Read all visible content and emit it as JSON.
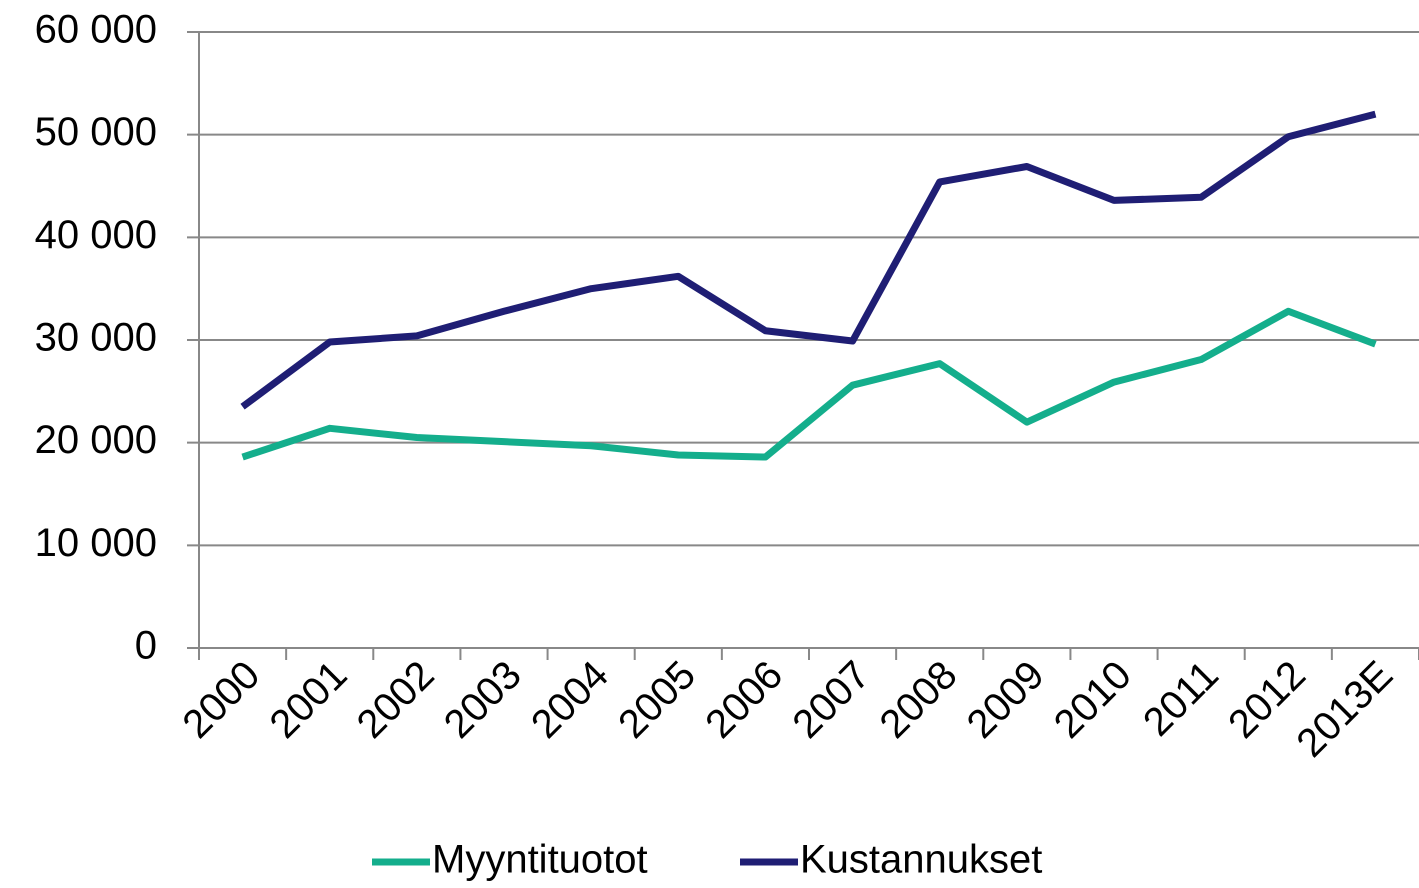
{
  "chart_data": {
    "type": "line",
    "categories": [
      "2000",
      "2001",
      "2002",
      "2003",
      "2004",
      "2005",
      "2006",
      "2007",
      "2008",
      "2009",
      "2010",
      "2011",
      "2012",
      "2013E"
    ],
    "series": [
      {
        "name": "Myyntituotot",
        "color": "#14ae8c",
        "values": [
          18600,
          21400,
          20500,
          20100,
          19700,
          18800,
          18600,
          25600,
          27700,
          22000,
          25900,
          28100,
          32800,
          29600
        ]
      },
      {
        "name": "Kustannukset",
        "color": "#1f1e74",
        "values": [
          23500,
          29800,
          30400,
          32800,
          35000,
          36200,
          30900,
          29900,
          45400,
          46900,
          43600,
          43900,
          49800,
          52000
        ]
      }
    ],
    "ylim": [
      0,
      60000
    ],
    "yticks": [
      0,
      {
        "value": 10000,
        "label": "10 000"
      },
      {
        "value": 20000,
        "label": "20 000"
      },
      {
        "value": 30000,
        "label": "30 000"
      },
      {
        "value": 40000,
        "label": "40 000"
      },
      {
        "value": 50000,
        "label": "50 000"
      },
      {
        "value": 60000,
        "label": "60 000"
      }
    ],
    "grid": true,
    "legend": "bottom"
  }
}
